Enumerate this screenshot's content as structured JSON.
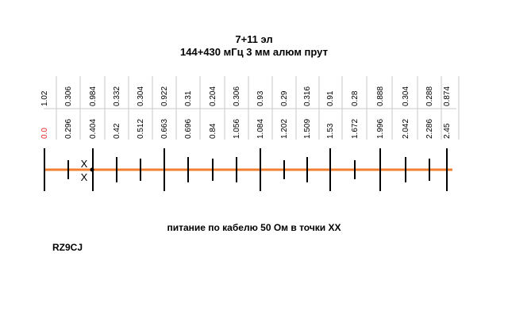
{
  "title": {
    "line1": "7+11 эл",
    "line2": "144+430 мГц  3 мм алюм прут"
  },
  "colors": {
    "boom": "#f08030",
    "start_label": "#e02020",
    "grid": "#c8c8c8",
    "ink": "#000000"
  },
  "lengths": [
    "1.02",
    "0.306",
    "0.984",
    "0.332",
    "0.304",
    "0.922",
    "0.31",
    "0.204",
    "0.306",
    "0.93",
    "0.29",
    "0.316",
    "0.91",
    "0.28",
    "0.888",
    "0.304",
    "0.288",
    "0.874"
  ],
  "positions": [
    "0.0",
    "0.296",
    "0.404",
    "0.42",
    "0.512",
    "0.663",
    "0.696",
    "0.84",
    "1.056",
    "1.084",
    "1.202",
    "1.509",
    "1.53",
    "1.672",
    "1.996",
    "2.042",
    "2.286",
    "2.45"
  ],
  "feed_marks": [
    "X",
    "X"
  ],
  "feed_note": "питание по кабелю 50 Ом в точки XX",
  "callsign": "RZ9CJ"
}
